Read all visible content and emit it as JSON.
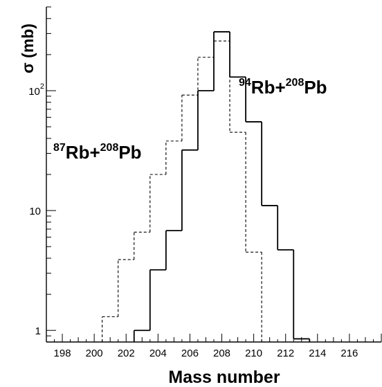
{
  "chart_data": {
    "type": "line",
    "step": "histogram",
    "xlabel": "Mass number",
    "ylabel": "σ (mb)",
    "xlim": [
      197,
      218
    ],
    "ylim": [
      0.8,
      500
    ],
    "y_scale": "log",
    "grid": false,
    "x_ticks": [
      198,
      200,
      202,
      204,
      206,
      208,
      210,
      212,
      214,
      216
    ],
    "y_ticks": [
      {
        "value": 1,
        "label": "1",
        "exp": ""
      },
      {
        "value": 10,
        "label": "10",
        "exp": ""
      },
      {
        "value": 100,
        "label": "10",
        "exp": "2"
      }
    ],
    "series": [
      {
        "name": "87Rb+208Pb",
        "style": "dashed",
        "edges": [
          200.5,
          201.5,
          202.5,
          203.5,
          204.5,
          205.5,
          206.5,
          207.5,
          208.5,
          209.5,
          210.5
        ],
        "values": [
          1.3,
          3.9,
          6.6,
          20,
          38,
          92,
          190,
          260,
          45,
          4.5
        ]
      },
      {
        "name": "94Rb+208Pb",
        "style": "solid",
        "edges": [
          202.5,
          203.5,
          204.5,
          205.5,
          206.5,
          207.5,
          208.5,
          209.5,
          210.5,
          211.5,
          212.5,
          213.5
        ],
        "values": [
          1.0,
          3.2,
          6.8,
          32,
          100,
          310,
          130,
          55,
          11,
          4.7,
          0.85
        ]
      }
    ],
    "annotations": [
      {
        "series": "87Rb+208Pb",
        "pre": "87",
        "a": "Rb+",
        "b": "208",
        "c": "Pb"
      },
      {
        "series": "94Rb+208Pb",
        "pre": "94",
        "a": "Rb+",
        "b": "208",
        "c": "Pb"
      }
    ],
    "colors": {
      "line": "#000000",
      "background": "#ffffff"
    }
  }
}
